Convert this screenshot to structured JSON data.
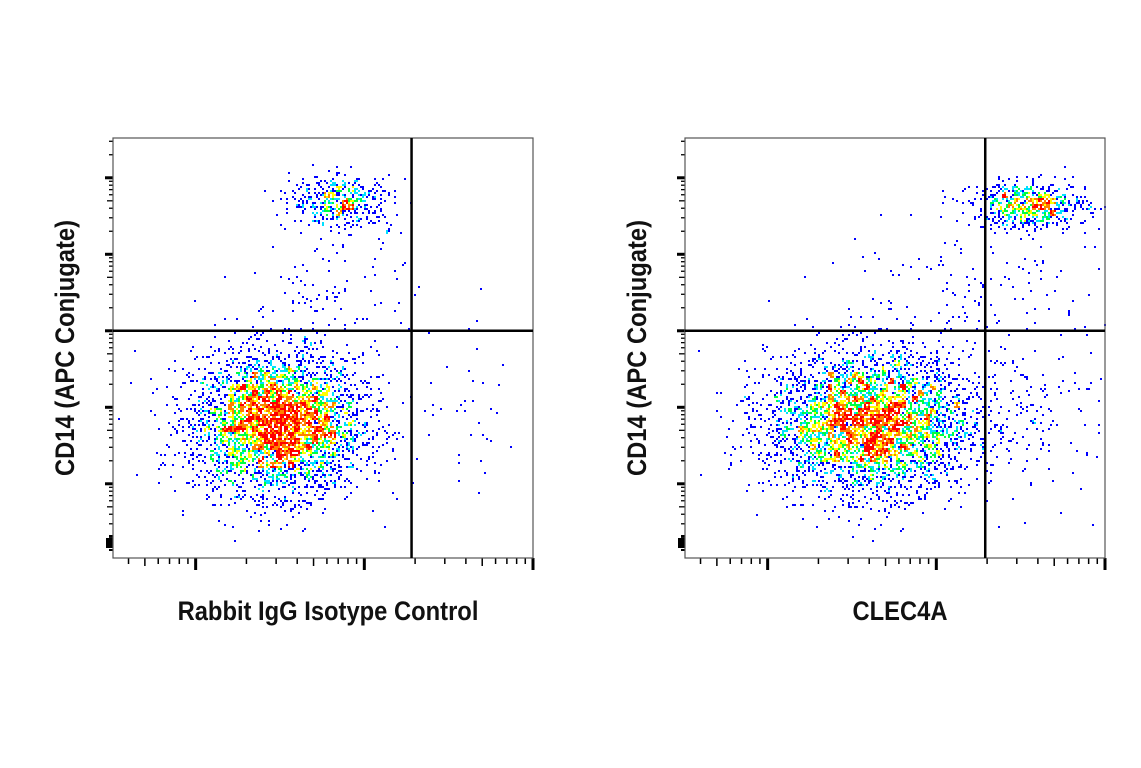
{
  "chart_data": [
    {
      "type": "scatter",
      "subtype": "flow-cytometry density dot plot",
      "xlabel": "Rabbit IgG Isotype Control",
      "ylabel": "CD14 (APC Conjugate)",
      "x_scale": "log",
      "y_scale": "log",
      "tick_labels_shown": false,
      "xlim_decades": [
        0.51,
        3.0
      ],
      "ylim_decades": [
        0.03,
        5.52
      ],
      "quadrant_gate": {
        "x": 2.28,
        "y": 3.0
      },
      "populations": [
        {
          "center": [
            1.48,
            1.8
          ],
          "sd": [
            0.25,
            0.45
          ],
          "count": 4200
        },
        {
          "center": [
            1.86,
            4.7
          ],
          "sd": [
            0.15,
            0.17
          ],
          "count": 450
        },
        {
          "center": [
            1.8,
            3.4
          ],
          "sd": [
            0.25,
            0.5
          ],
          "count": 120
        },
        {
          "center": [
            2.6,
            1.9
          ],
          "sd": [
            0.2,
            0.5
          ],
          "count": 35
        }
      ],
      "color_scale": [
        "#0000ff",
        "#00e0ff",
        "#00ff40",
        "#ffff00",
        "#ff8000",
        "#ff0000"
      ]
    },
    {
      "type": "scatter",
      "subtype": "flow-cytometry density dot plot",
      "xlabel": "CLEC4A",
      "ylabel": "CD14 (APC Conjugate)",
      "x_scale": "log",
      "y_scale": "log",
      "tick_labels_shown": false,
      "xlim_decades": [
        0.51,
        3.0
      ],
      "ylim_decades": [
        0.03,
        5.52
      ],
      "quadrant_gate": {
        "x": 2.29,
        "y": 3.0
      },
      "populations": [
        {
          "center": [
            1.6,
            1.8
          ],
          "sd": [
            0.3,
            0.45
          ],
          "count": 4300
        },
        {
          "center": [
            2.55,
            4.65
          ],
          "sd": [
            0.17,
            0.15
          ],
          "count": 650
        },
        {
          "center": [
            1.9,
            3.4
          ],
          "sd": [
            0.35,
            0.5
          ],
          "count": 100
        },
        {
          "center": [
            2.6,
            2.0
          ],
          "sd": [
            0.22,
            0.55
          ],
          "count": 160
        },
        {
          "center": [
            2.6,
            3.8
          ],
          "sd": [
            0.2,
            0.4
          ],
          "count": 40
        }
      ],
      "color_scale": [
        "#0000ff",
        "#00e0ff",
        "#00ff40",
        "#ffff00",
        "#ff8000",
        "#ff0000"
      ]
    }
  ]
}
